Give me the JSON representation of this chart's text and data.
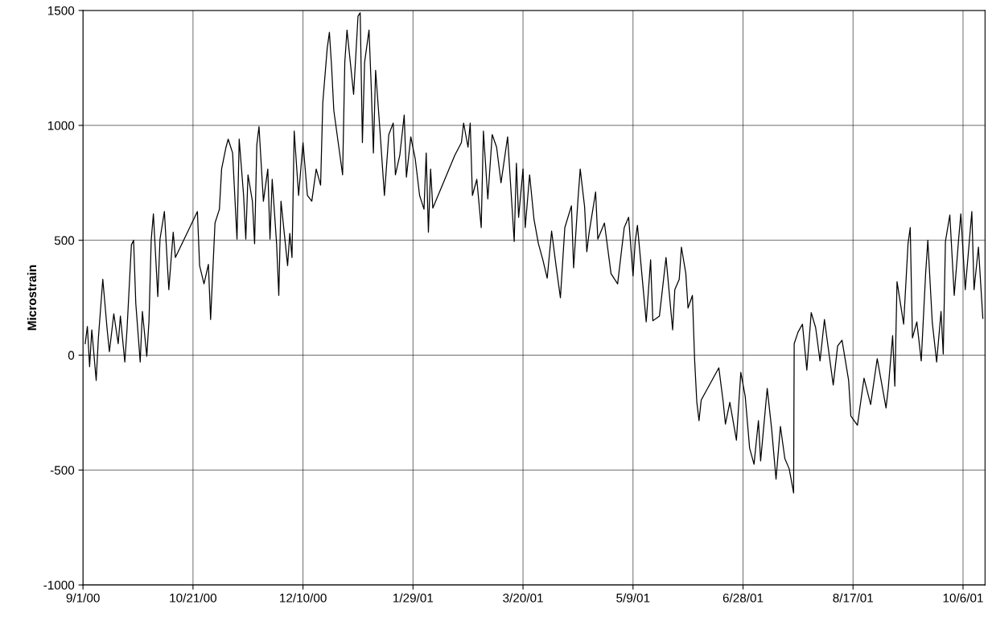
{
  "chart_data": {
    "type": "line",
    "ylabel": "Microstrain",
    "x": [
      "2000-09-02",
      "2000-09-03",
      "2000-09-04",
      "2000-09-05",
      "2000-09-07",
      "2000-09-08",
      "2000-09-10",
      "2000-09-12",
      "2000-09-13",
      "2000-09-15",
      "2000-09-17",
      "2000-09-18",
      "2000-09-20",
      "2000-09-21",
      "2000-09-23",
      "2000-09-24",
      "2000-09-25",
      "2000-09-27",
      "2000-09-28",
      "2000-09-30",
      "2000-10-01",
      "2000-10-02",
      "2000-10-03",
      "2000-10-05",
      "2000-10-06",
      "2000-10-08",
      "2000-10-10",
      "2000-10-12",
      "2000-10-13",
      "2000-10-23",
      "2000-10-24",
      "2000-10-26",
      "2000-10-28",
      "2000-10-29",
      "2000-10-31",
      "2000-11-02",
      "2000-11-03",
      "2000-11-05",
      "2000-11-06",
      "2000-11-08",
      "2000-11-10",
      "2000-11-11",
      "2000-11-13",
      "2000-11-14",
      "2000-11-15",
      "2000-11-17",
      "2000-11-18",
      "2000-11-19",
      "2000-11-20",
      "2000-11-22",
      "2000-11-24",
      "2000-11-25",
      "2000-11-26",
      "2000-11-28",
      "2000-11-29",
      "2000-11-30",
      "2000-12-03",
      "2000-12-04",
      "2000-12-05",
      "2000-12-06",
      "2000-12-08",
      "2000-12-10",
      "2000-12-12",
      "2000-12-14",
      "2000-12-16",
      "2000-12-18",
      "2000-12-19",
      "2000-12-21",
      "2000-12-22",
      "2000-12-23",
      "2000-12-24",
      "2000-12-26",
      "2000-12-28",
      "2000-12-29",
      "2000-12-30",
      "2001-01-02",
      "2001-01-04",
      "2001-01-05",
      "2001-01-06",
      "2001-01-07",
      "2001-01-09",
      "2001-01-10",
      "2001-01-11",
      "2001-01-12",
      "2001-01-14",
      "2001-01-16",
      "2001-01-18",
      "2001-01-20",
      "2001-01-21",
      "2001-01-23",
      "2001-01-25",
      "2001-01-26",
      "2001-01-28",
      "2001-01-30",
      "2001-02-01",
      "2001-02-03",
      "2001-02-04",
      "2001-02-05",
      "2001-02-06",
      "2001-02-07",
      "2001-02-17",
      "2001-02-20",
      "2001-02-21",
      "2001-02-23",
      "2001-02-24",
      "2001-02-25",
      "2001-02-27",
      "2001-03-01",
      "2001-03-02",
      "2001-03-04",
      "2001-03-06",
      "2001-03-08",
      "2001-03-10",
      "2001-03-13",
      "2001-03-15",
      "2001-03-16",
      "2001-03-17",
      "2001-03-18",
      "2001-03-20",
      "2001-03-21",
      "2001-03-23",
      "2001-03-25",
      "2001-03-27",
      "2001-03-29",
      "2001-03-31",
      "2001-04-02",
      "2001-04-04",
      "2001-04-06",
      "2001-04-08",
      "2001-04-11",
      "2001-04-12",
      "2001-04-14",
      "2001-04-15",
      "2001-04-17",
      "2001-04-18",
      "2001-04-19",
      "2001-04-22",
      "2001-04-23",
      "2001-04-26",
      "2001-04-29",
      "2001-05-02",
      "2001-05-05",
      "2001-05-07",
      "2001-05-09",
      "2001-05-10",
      "2001-05-11",
      "2001-05-15",
      "2001-05-17",
      "2001-05-18",
      "2001-05-21",
      "2001-05-24",
      "2001-05-27",
      "2001-05-28",
      "2001-05-30",
      "2001-05-31",
      "2001-06-02",
      "2001-06-03",
      "2001-06-05",
      "2001-06-06",
      "2001-06-07",
      "2001-06-08",
      "2001-06-09",
      "2001-06-17",
      "2001-06-19",
      "2001-06-20",
      "2001-06-22",
      "2001-06-25",
      "2001-06-27",
      "2001-06-29",
      "2001-07-01",
      "2001-07-03",
      "2001-07-05",
      "2001-07-06",
      "2001-07-09",
      "2001-07-11",
      "2001-07-13",
      "2001-07-15",
      "2001-07-17",
      "2001-07-19",
      "2001-07-21",
      "2001-07-21T06:00",
      "2001-07-23",
      "2001-07-25",
      "2001-07-27",
      "2001-07-29",
      "2001-07-31",
      "2001-08-02",
      "2001-08-04",
      "2001-08-08",
      "2001-08-10",
      "2001-08-12",
      "2001-08-15",
      "2001-08-16",
      "2001-08-19",
      "2001-08-22",
      "2001-08-25",
      "2001-08-28",
      "2001-09-01",
      "2001-09-02",
      "2001-09-04",
      "2001-09-05",
      "2001-09-06",
      "2001-09-09",
      "2001-09-11",
      "2001-09-12",
      "2001-09-13",
      "2001-09-15",
      "2001-09-17",
      "2001-09-19",
      "2001-09-20",
      "2001-09-22",
      "2001-09-24",
      "2001-09-26",
      "2001-09-27",
      "2001-09-28",
      "2001-09-30",
      "2001-10-02",
      "2001-10-04",
      "2001-10-05",
      "2001-10-07",
      "2001-10-10",
      "2001-10-11",
      "2001-10-13",
      "2001-10-15"
    ],
    "series": [
      {
        "color": "#000000",
        "values": [
          50,
          125,
          -50,
          110,
          -110,
          75,
          330,
          110,
          15,
          180,
          50,
          170,
          -30,
          110,
          480,
          500,
          225,
          -30,
          190,
          -5,
          150,
          500,
          615,
          255,
          505,
          625,
          285,
          535,
          425,
          625,
          390,
          310,
          395,
          155,
          575,
          635,
          810,
          905,
          940,
          880,
          505,
          940,
          695,
          505,
          785,
          670,
          485,
          915,
          995,
          670,
          810,
          505,
          765,
          485,
          260,
          670,
          390,
          530,
          425,
          975,
          695,
          925,
          695,
          670,
          810,
          740,
          1100,
          1335,
          1405,
          1255,
          1065,
          925,
          785,
          1275,
          1415,
          1135,
          1475,
          1490,
          925,
          1275,
          1415,
          1170,
          880,
          1240,
          975,
          695,
          960,
          1010,
          785,
          870,
          1045,
          775,
          950,
          855,
          695,
          635,
          880,
          535,
          810,
          640,
          870,
          925,
          1010,
          905,
          1010,
          695,
          765,
          555,
          975,
          680,
          960,
          905,
          750,
          950,
          645,
          495,
          835,
          600,
          810,
          555,
          785,
          590,
          485,
          415,
          335,
          540,
          390,
          250,
          555,
          650,
          380,
          680,
          810,
          645,
          450,
          530,
          710,
          505,
          575,
          355,
          310,
          555,
          600,
          345,
          495,
          565,
          145,
          415,
          150,
          170,
          425,
          110,
          285,
          330,
          470,
          355,
          205,
          260,
          -20,
          -205,
          -285,
          -195,
          -55,
          -205,
          -300,
          -205,
          -370,
          -75,
          -180,
          -405,
          -475,
          -285,
          -460,
          -145,
          -320,
          -540,
          -310,
          -450,
          -495,
          -600,
          50,
          100,
          135,
          -65,
          185,
          120,
          -25,
          155,
          -130,
          40,
          65,
          -110,
          -265,
          -305,
          -100,
          -215,
          -15,
          -230,
          -145,
          85,
          -135,
          320,
          135,
          485,
          555,
          75,
          145,
          -25,
          355,
          500,
          145,
          -30,
          190,
          5,
          495,
          610,
          260,
          505,
          615,
          285,
          625,
          285,
          470,
          160
        ]
      }
    ],
    "xlim": [
      "2000-09-01",
      "2001-10-16"
    ],
    "xticks": [
      {
        "value": "2000-09-01",
        "label": "9/1/00"
      },
      {
        "value": "2000-10-21",
        "label": "10/21/00"
      },
      {
        "value": "2000-12-10",
        "label": "12/10/00"
      },
      {
        "value": "2001-01-29",
        "label": "1/29/01"
      },
      {
        "value": "2001-03-20",
        "label": "3/20/01"
      },
      {
        "value": "2001-05-09",
        "label": "5/9/01"
      },
      {
        "value": "2001-06-28",
        "label": "6/28/01"
      },
      {
        "value": "2001-08-17",
        "label": "8/17/01"
      },
      {
        "value": "2001-10-06",
        "label": "10/6/01"
      }
    ],
    "ylim": [
      -1000,
      1500
    ],
    "yticks": [
      -1000,
      -500,
      0,
      500,
      1000,
      1500
    ],
    "grid": true,
    "marker": "none",
    "line_style": "solid"
  }
}
